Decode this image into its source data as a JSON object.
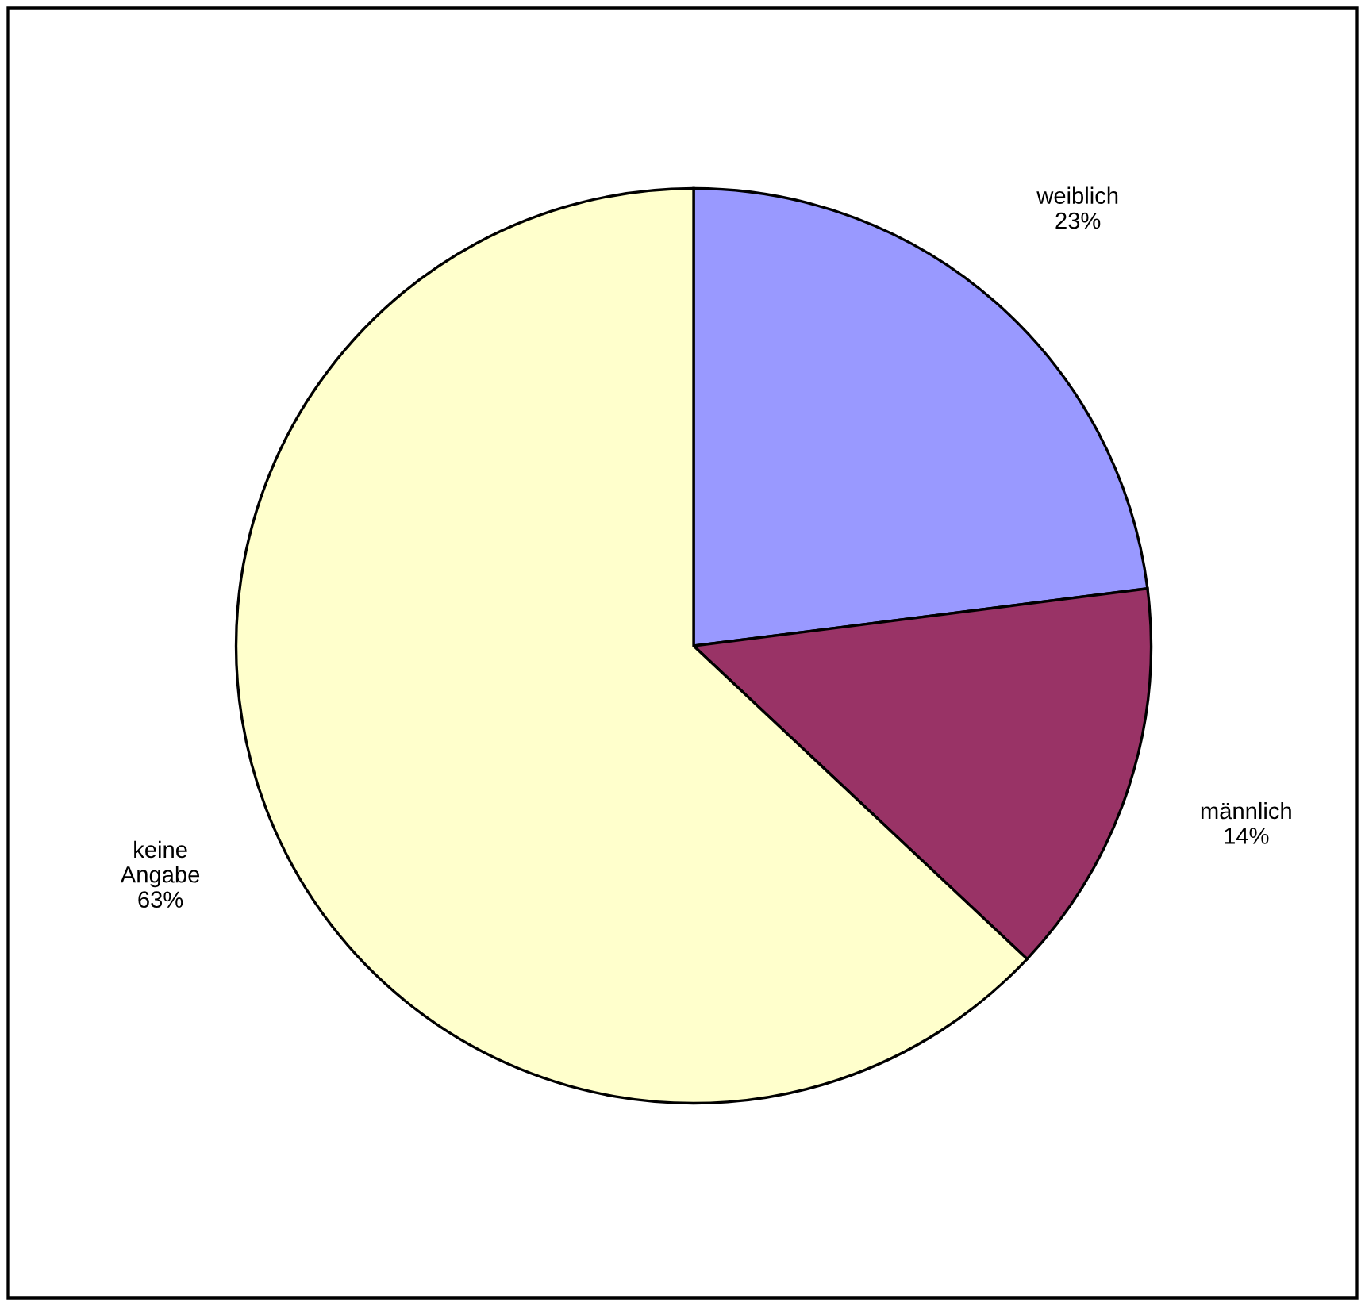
{
  "chart_data": {
    "type": "pie",
    "categories": [
      "weiblich",
      "männlich",
      "keine\nAngabe"
    ],
    "values": [
      23,
      14,
      63
    ],
    "value_labels": [
      "23%",
      "14%",
      "63%"
    ],
    "colors": [
      "#9999ff",
      "#993366",
      "#ffffcc"
    ],
    "legend": false
  }
}
